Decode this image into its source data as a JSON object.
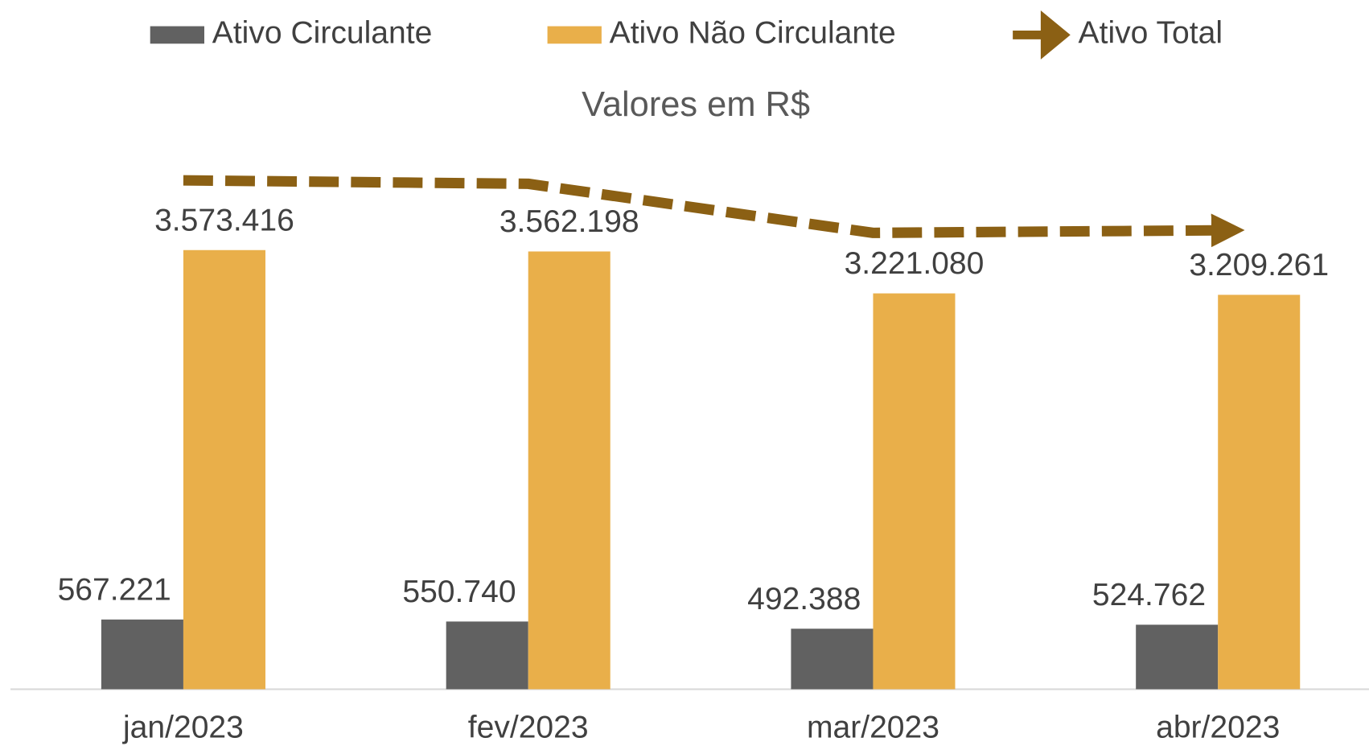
{
  "chart_data": {
    "type": "bar",
    "title": "Valores em R$",
    "categories": [
      "jan/2023",
      "fev/2023",
      "mar/2023",
      "abr/2023"
    ],
    "series": [
      {
        "name": "Ativo Circulante",
        "type": "bar",
        "color": "#616161",
        "values": [
          567221,
          550740,
          492388,
          524762
        ],
        "value_labels": [
          "567.221",
          "550.740",
          "492.388",
          "524.762"
        ]
      },
      {
        "name": "Ativo Não Circulante",
        "type": "bar",
        "color": "#e9af4a",
        "values": [
          3573416,
          3562198,
          3221080,
          3209261
        ],
        "value_labels": [
          "3.573.416",
          "3.562.198",
          "3.221.080",
          "3.209.261"
        ]
      },
      {
        "name": "Ativo Total",
        "type": "line",
        "color": "#8b6014",
        "values": [
          4140637,
          4112938,
          3713468,
          3734023
        ]
      }
    ],
    "ylim": [
      0,
      4400000
    ],
    "legend": "top"
  }
}
